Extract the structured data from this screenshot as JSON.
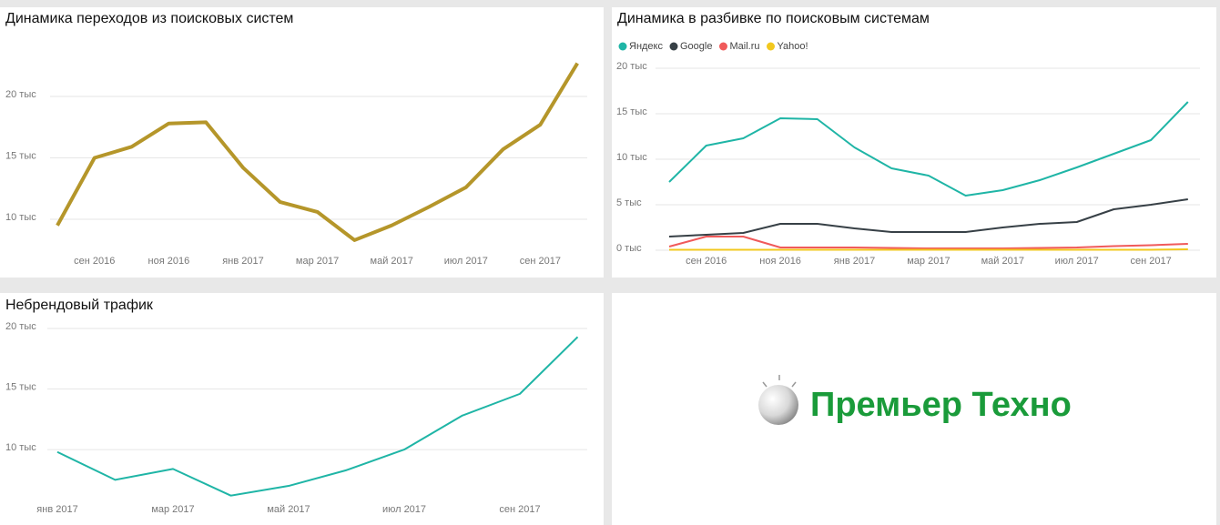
{
  "chart_data": [
    {
      "type": "line",
      "title": "Динамика переходов из поисковых систем",
      "categories": [
        null,
        "сен 2016",
        null,
        "ноя 2016",
        null,
        "янв 2017",
        null,
        "мар 2017",
        null,
        "май 2017",
        null,
        "июл 2017",
        null,
        "сен 2017",
        null
      ],
      "series": [
        {
          "color": "#b5962a",
          "values": [
            9.5,
            15.0,
            15.9,
            17.8,
            17.9,
            14.2,
            11.4,
            10.6,
            8.3,
            9.5,
            11.0,
            12.6,
            15.7,
            17.7,
            22.7
          ]
        }
      ],
      "ylim": [
        8,
        23
      ],
      "yticks": [
        {
          "value": 10,
          "label": "10 тыс"
        },
        {
          "value": 15,
          "label": "15 тыс"
        },
        {
          "value": 20,
          "label": "20 тыс"
        }
      ],
      "grid": true
    },
    {
      "type": "line",
      "title": "Динамика в разбивке по поисковым системам",
      "categories": [
        null,
        "сен 2016",
        null,
        "ноя 2016",
        null,
        "янв 2017",
        null,
        "мар 2017",
        null,
        "май 2017",
        null,
        "июл 2017",
        null,
        "сен 2017",
        null
      ],
      "series": [
        {
          "name": "Яндекс",
          "color": "#1fb5a6",
          "values": [
            7.5,
            11.5,
            12.3,
            14.5,
            14.4,
            11.3,
            9.0,
            8.2,
            6.0,
            6.6,
            7.7,
            9.1,
            10.6,
            12.1,
            16.3
          ]
        },
        {
          "name": "Google",
          "color": "#374046",
          "values": [
            1.5,
            1.7,
            1.9,
            2.9,
            2.9,
            2.4,
            2.0,
            2.0,
            2.0,
            2.5,
            2.9,
            3.1,
            4.5,
            5.0,
            5.6
          ]
        },
        {
          "name": "Mail.ru",
          "color": "#f05a5a",
          "values": [
            0.4,
            1.5,
            1.5,
            0.3,
            0.3,
            0.3,
            0.25,
            0.2,
            0.2,
            0.2,
            0.25,
            0.3,
            0.45,
            0.55,
            0.7
          ]
        },
        {
          "name": "Yahoo!",
          "color": "#f2c81e",
          "values": [
            0.05,
            0.05,
            0.05,
            0.05,
            0.05,
            0.05,
            0.05,
            0.05,
            0.05,
            0.05,
            0.05,
            0.05,
            0.05,
            0.05,
            0.1
          ]
        }
      ],
      "legend": "top-left",
      "ylim": [
        0,
        20
      ],
      "yticks": [
        {
          "value": 0,
          "label": "0 тыс"
        },
        {
          "value": 5,
          "label": "5 тыс"
        },
        {
          "value": 10,
          "label": "10 тыс"
        },
        {
          "value": 15,
          "label": "15 тыс"
        },
        {
          "value": 20,
          "label": "20 тыс"
        }
      ],
      "grid": true
    },
    {
      "type": "line",
      "title": "Небрендовый трафик",
      "categories": [
        "янв 2017",
        null,
        "мар 2017",
        null,
        "май 2017",
        null,
        "июл 2017",
        null,
        "сен 2017",
        null
      ],
      "series": [
        {
          "color": "#1fb5a6",
          "values": [
            9.8,
            7.5,
            8.4,
            6.2,
            7.0,
            8.3,
            10.0,
            12.8,
            14.6,
            19.3
          ]
        }
      ],
      "ylim": [
        5.5,
        20
      ],
      "yticks": [
        {
          "value": 10,
          "label": "10 тыс"
        },
        {
          "value": 15,
          "label": "15 тыс"
        },
        {
          "value": 20,
          "label": "20 тыс"
        }
      ],
      "grid": true
    }
  ],
  "logo": {
    "text": "Премьер Техно"
  }
}
